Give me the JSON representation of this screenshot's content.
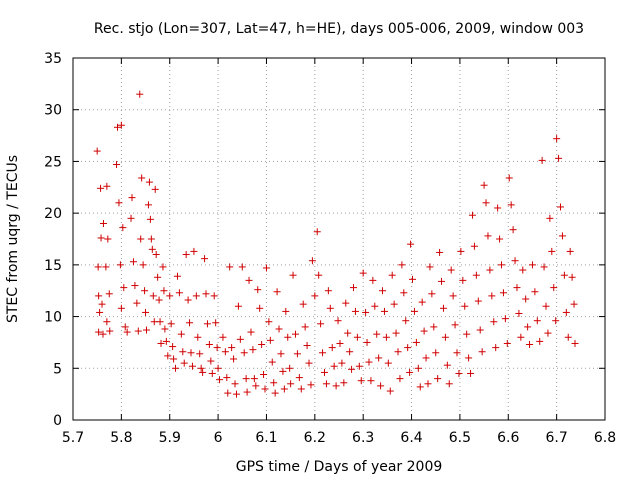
{
  "chart_data": {
    "type": "scatter",
    "title": "Rec. stjo (Lon=307, Lat=47, h=HE), days 005-006, 2009, window 003",
    "xlabel": "GPS time / Days of year 2009",
    "ylabel": "STEC from uqrg / TECUs",
    "xlim": [
      5.7,
      6.8
    ],
    "ylim": [
      0,
      35
    ],
    "x_ticks": [
      "5.7",
      "5.8",
      "5.9",
      "6",
      "6.1",
      "6.2",
      "6.3",
      "6.4",
      "6.5",
      "6.6",
      "6.7",
      "6.8"
    ],
    "y_ticks": [
      "0",
      "5",
      "10",
      "15",
      "20",
      "25",
      "30",
      "35"
    ],
    "grid": true,
    "marker": "+",
    "series": [
      {
        "color": "#d00000",
        "points": [
          [
            5.75,
            26.0
          ],
          [
            5.757,
            22.4
          ],
          [
            5.763,
            19.0
          ],
          [
            5.758,
            17.6
          ],
          [
            5.752,
            14.8
          ],
          [
            5.753,
            12.0
          ],
          [
            5.76,
            11.2
          ],
          [
            5.755,
            10.4
          ],
          [
            5.753,
            8.5
          ],
          [
            5.762,
            8.3
          ],
          [
            5.77,
            22.6
          ],
          [
            5.772,
            17.5
          ],
          [
            5.768,
            14.8
          ],
          [
            5.775,
            12.2
          ],
          [
            5.77,
            9.5
          ],
          [
            5.776,
            8.6
          ],
          [
            5.79,
            24.7
          ],
          [
            5.792,
            28.3
          ],
          [
            5.8,
            28.5
          ],
          [
            5.795,
            21.0
          ],
          [
            5.803,
            18.6
          ],
          [
            5.798,
            15.0
          ],
          [
            5.805,
            12.8
          ],
          [
            5.8,
            10.8
          ],
          [
            5.808,
            9.0
          ],
          [
            5.812,
            8.5
          ],
          [
            5.82,
            19.5
          ],
          [
            5.822,
            21.5
          ],
          [
            5.825,
            15.3
          ],
          [
            5.828,
            13.0
          ],
          [
            5.832,
            11.3
          ],
          [
            5.835,
            8.6
          ],
          [
            5.838,
            31.5
          ],
          [
            5.842,
            23.4
          ],
          [
            5.84,
            17.5
          ],
          [
            5.845,
            15.0
          ],
          [
            5.848,
            12.5
          ],
          [
            5.85,
            10.4
          ],
          [
            5.852,
            8.7
          ],
          [
            5.856,
            20.8
          ],
          [
            5.858,
            23.0
          ],
          [
            5.86,
            19.4
          ],
          [
            5.862,
            17.5
          ],
          [
            5.864,
            16.5
          ],
          [
            5.866,
            12.0
          ],
          [
            5.868,
            9.5
          ],
          [
            5.87,
            22.3
          ],
          [
            5.872,
            16.0
          ],
          [
            5.875,
            13.8
          ],
          [
            5.878,
            11.6
          ],
          [
            5.88,
            9.5
          ],
          [
            5.882,
            7.4
          ],
          [
            5.886,
            14.8
          ],
          [
            5.888,
            12.5
          ],
          [
            5.89,
            8.8
          ],
          [
            5.893,
            7.6
          ],
          [
            5.896,
            6.2
          ],
          [
            5.9,
            12.0
          ],
          [
            5.903,
            9.3
          ],
          [
            5.906,
            7.1
          ],
          [
            5.908,
            5.9
          ],
          [
            5.912,
            5.0
          ],
          [
            5.916,
            13.9
          ],
          [
            5.92,
            12.3
          ],
          [
            5.924,
            8.3
          ],
          [
            5.927,
            6.6
          ],
          [
            5.93,
            5.5
          ],
          [
            5.934,
            16.0
          ],
          [
            5.938,
            11.6
          ],
          [
            5.941,
            9.4
          ],
          [
            5.944,
            6.5
          ],
          [
            5.947,
            5.2
          ],
          [
            5.95,
            16.3
          ],
          [
            5.955,
            12.0
          ],
          [
            5.958,
            8.0
          ],
          [
            5.962,
            6.4
          ],
          [
            5.965,
            5.0
          ],
          [
            5.968,
            4.6
          ],
          [
            5.972,
            15.6
          ],
          [
            5.975,
            12.2
          ],
          [
            5.978,
            9.3
          ],
          [
            5.982,
            7.3
          ],
          [
            5.985,
            5.7
          ],
          [
            5.988,
            4.5
          ],
          [
            5.992,
            12.0
          ],
          [
            5.995,
            9.4
          ],
          [
            5.998,
            7.0
          ],
          [
            6.0,
            5.0
          ],
          [
            6.003,
            3.9
          ],
          [
            6.01,
            8.0
          ],
          [
            6.015,
            6.6
          ],
          [
            6.018,
            4.1
          ],
          [
            6.02,
            2.6
          ],
          [
            6.024,
            14.8
          ],
          [
            6.028,
            7.0
          ],
          [
            6.032,
            5.9
          ],
          [
            6.035,
            3.5
          ],
          [
            6.038,
            2.5
          ],
          [
            6.042,
            11.0
          ],
          [
            6.046,
            7.8
          ],
          [
            6.05,
            14.8
          ],
          [
            6.054,
            6.5
          ],
          [
            6.058,
            4.0
          ],
          [
            6.06,
            2.7
          ],
          [
            6.064,
            13.5
          ],
          [
            6.068,
            8.5
          ],
          [
            6.072,
            6.8
          ],
          [
            6.075,
            4.0
          ],
          [
            6.078,
            3.3
          ],
          [
            6.082,
            12.6
          ],
          [
            6.086,
            10.8
          ],
          [
            6.09,
            7.3
          ],
          [
            6.094,
            4.4
          ],
          [
            6.097,
            3.0
          ],
          [
            6.1,
            14.7
          ],
          [
            6.105,
            9.5
          ],
          [
            6.108,
            7.7
          ],
          [
            6.112,
            5.6
          ],
          [
            6.115,
            3.6
          ],
          [
            6.118,
            2.6
          ],
          [
            6.122,
            12.4
          ],
          [
            6.126,
            8.8
          ],
          [
            6.13,
            6.4
          ],
          [
            6.134,
            4.7
          ],
          [
            6.137,
            3.0
          ],
          [
            6.14,
            10.5
          ],
          [
            6.144,
            8.0
          ],
          [
            6.148,
            5.0
          ],
          [
            6.15,
            3.5
          ],
          [
            6.155,
            14.0
          ],
          [
            6.16,
            8.3
          ],
          [
            6.164,
            6.4
          ],
          [
            6.168,
            4.1
          ],
          [
            6.172,
            3.0
          ],
          [
            6.176,
            11.2
          ],
          [
            6.18,
            9.0
          ],
          [
            6.184,
            7.2
          ],
          [
            6.188,
            5.5
          ],
          [
            6.192,
            3.4
          ],
          [
            6.195,
            15.4
          ],
          [
            6.2,
            12.0
          ],
          [
            6.205,
            18.2
          ],
          [
            6.208,
            14.0
          ],
          [
            6.212,
            9.3
          ],
          [
            6.216,
            6.5
          ],
          [
            6.22,
            4.6
          ],
          [
            6.224,
            3.5
          ],
          [
            6.228,
            12.5
          ],
          [
            6.232,
            10.8
          ],
          [
            6.236,
            7.0
          ],
          [
            6.24,
            5.2
          ],
          [
            6.244,
            3.3
          ],
          [
            6.248,
            9.6
          ],
          [
            6.252,
            7.4
          ],
          [
            6.256,
            5.5
          ],
          [
            6.26,
            3.6
          ],
          [
            6.264,
            11.3
          ],
          [
            6.268,
            8.4
          ],
          [
            6.272,
            6.6
          ],
          [
            6.276,
            4.9
          ],
          [
            6.28,
            12.8
          ],
          [
            6.284,
            10.5
          ],
          [
            6.288,
            8.0
          ],
          [
            6.292,
            5.2
          ],
          [
            6.296,
            3.8
          ],
          [
            6.3,
            14.2
          ],
          [
            6.305,
            10.4
          ],
          [
            6.308,
            7.5
          ],
          [
            6.312,
            5.6
          ],
          [
            6.316,
            3.8
          ],
          [
            6.32,
            13.5
          ],
          [
            6.324,
            11.0
          ],
          [
            6.328,
            8.3
          ],
          [
            6.332,
            6.0
          ],
          [
            6.336,
            3.3
          ],
          [
            6.34,
            12.5
          ],
          [
            6.344,
            10.5
          ],
          [
            6.348,
            8.0
          ],
          [
            6.352,
            5.5
          ],
          [
            6.356,
            2.8
          ],
          [
            6.36,
            14.0
          ],
          [
            6.364,
            11.2
          ],
          [
            6.368,
            8.4
          ],
          [
            6.372,
            6.6
          ],
          [
            6.376,
            4.0
          ],
          [
            6.38,
            15.0
          ],
          [
            6.384,
            12.3
          ],
          [
            6.388,
            9.6
          ],
          [
            6.392,
            7.0
          ],
          [
            6.396,
            4.6
          ],
          [
            6.398,
            17.0
          ],
          [
            6.402,
            13.6
          ],
          [
            6.406,
            10.5
          ],
          [
            6.41,
            7.5
          ],
          [
            6.414,
            5.0
          ],
          [
            6.418,
            3.2
          ],
          [
            6.422,
            11.4
          ],
          [
            6.426,
            8.6
          ],
          [
            6.43,
            6.0
          ],
          [
            6.434,
            3.5
          ],
          [
            6.438,
            14.8
          ],
          [
            6.442,
            12.2
          ],
          [
            6.446,
            9.0
          ],
          [
            6.45,
            6.5
          ],
          [
            6.454,
            4.0
          ],
          [
            6.458,
            16.2
          ],
          [
            6.462,
            13.4
          ],
          [
            6.466,
            10.8
          ],
          [
            6.47,
            8.0
          ],
          [
            6.474,
            5.3
          ],
          [
            6.478,
            3.5
          ],
          [
            6.482,
            14.5
          ],
          [
            6.486,
            12.0
          ],
          [
            6.49,
            9.2
          ],
          [
            6.494,
            6.5
          ],
          [
            6.498,
            4.5
          ],
          [
            6.502,
            16.3
          ],
          [
            6.506,
            13.5
          ],
          [
            6.51,
            11.0
          ],
          [
            6.514,
            8.3
          ],
          [
            6.518,
            6.0
          ],
          [
            6.522,
            4.5
          ],
          [
            6.526,
            19.8
          ],
          [
            6.53,
            16.8
          ],
          [
            6.534,
            14.0
          ],
          [
            6.538,
            11.5
          ],
          [
            6.542,
            8.7
          ],
          [
            6.546,
            6.6
          ],
          [
            6.55,
            22.7
          ],
          [
            6.554,
            21.0
          ],
          [
            6.558,
            17.8
          ],
          [
            6.562,
            14.5
          ],
          [
            6.566,
            12.0
          ],
          [
            6.57,
            9.5
          ],
          [
            6.574,
            7.0
          ],
          [
            6.578,
            20.5
          ],
          [
            6.582,
            17.5
          ],
          [
            6.586,
            15.0
          ],
          [
            6.59,
            12.3
          ],
          [
            6.594,
            9.8
          ],
          [
            6.598,
            7.4
          ],
          [
            6.602,
            23.4
          ],
          [
            6.606,
            20.8
          ],
          [
            6.61,
            18.4
          ],
          [
            6.614,
            15.4
          ],
          [
            6.618,
            12.8
          ],
          [
            6.622,
            10.3
          ],
          [
            6.626,
            8.0
          ],
          [
            6.63,
            14.5
          ],
          [
            6.636,
            11.7
          ],
          [
            6.64,
            9.0
          ],
          [
            6.644,
            7.3
          ],
          [
            6.65,
            15.0
          ],
          [
            6.655,
            12.4
          ],
          [
            6.66,
            9.6
          ],
          [
            6.665,
            7.6
          ],
          [
            6.67,
            25.1
          ],
          [
            6.674,
            14.8
          ],
          [
            6.678,
            11.0
          ],
          [
            6.682,
            8.4
          ],
          [
            6.686,
            19.5
          ],
          [
            6.69,
            16.3
          ],
          [
            6.694,
            12.8
          ],
          [
            6.698,
            9.6
          ],
          [
            6.7,
            27.2
          ],
          [
            6.704,
            25.3
          ],
          [
            6.708,
            20.6
          ],
          [
            6.712,
            17.8
          ],
          [
            6.716,
            14.0
          ],
          [
            6.72,
            10.4
          ],
          [
            6.724,
            8.0
          ],
          [
            6.728,
            16.3
          ],
          [
            6.732,
            13.8
          ],
          [
            6.736,
            11.2
          ],
          [
            6.738,
            7.4
          ]
        ]
      }
    ]
  }
}
